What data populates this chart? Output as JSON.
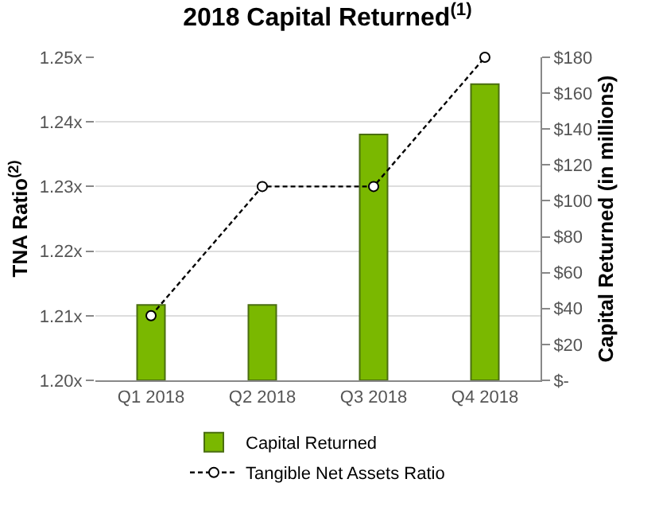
{
  "chart_data": {
    "type": "bar",
    "title": "2018 Capital Returned$^{(1)}$",
    "ylabel": "TNA Ratio$^{(2)}$",
    "y2label": "Capital Returned (in millions)",
    "categories": [
      "Q1 2018",
      "Q2 2018",
      "Q3 2018",
      "Q4 2018"
    ],
    "series": [
      {
        "name": "Capital Returned",
        "axis": "y2",
        "color": "#7ab800",
        "values": [
          42,
          42,
          137,
          165
        ]
      },
      {
        "name": "Tangible Net Assets Ratio",
        "type": "line",
        "axis": "y",
        "color": "#000000",
        "marker": "circle",
        "line_style": "dashed",
        "values": [
          1.21,
          1.23,
          1.23,
          1.25
        ]
      }
    ],
    "ylim": [
      1.2,
      1.25
    ],
    "yticks": [
      {
        "value": 1.2,
        "label": "1.20x"
      },
      {
        "value": 1.21,
        "label": "1.21x"
      },
      {
        "value": 1.22,
        "label": "1.22x"
      },
      {
        "value": 1.23,
        "label": "1.23x"
      },
      {
        "value": 1.24,
        "label": "1.24x"
      },
      {
        "value": 1.25,
        "label": "1.25x"
      }
    ],
    "y2lim": [
      0,
      180
    ],
    "y2ticks": [
      {
        "value": 0,
        "label": "$-"
      },
      {
        "value": 20,
        "label": "$20"
      },
      {
        "value": 40,
        "label": "$40"
      },
      {
        "value": 60,
        "label": "$60"
      },
      {
        "value": 80,
        "label": "$80"
      },
      {
        "value": 100,
        "label": "$100"
      },
      {
        "value": 120,
        "label": "$120"
      },
      {
        "value": 140,
        "label": "$140"
      },
      {
        "value": 160,
        "label": "$160"
      },
      {
        "value": 180,
        "label": "$180"
      }
    ],
    "grid": "y",
    "legend": "bottom"
  }
}
